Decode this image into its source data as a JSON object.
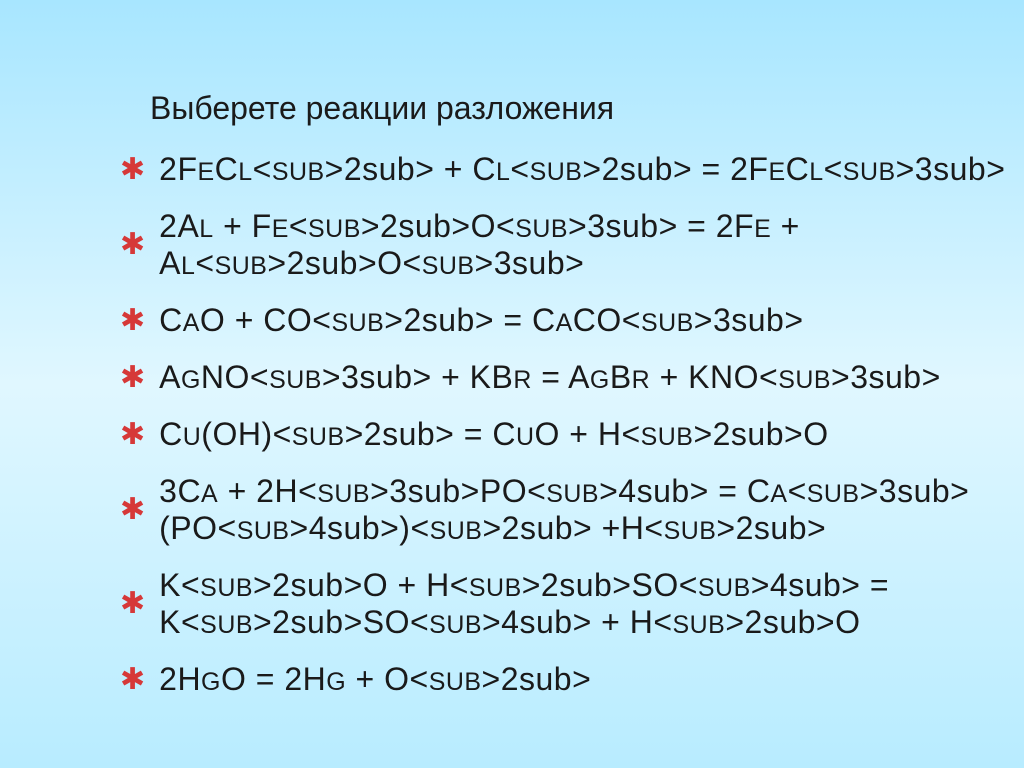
{
  "slide": {
    "title": "Выберете реакции разложения",
    "background_gradient": [
      "#a8e6ff",
      "#e0f7ff",
      "#b8ecff"
    ],
    "title_fontsize": 32,
    "title_color": "#1a1a1a",
    "bullet_color": "#d63838",
    "bullet_symbol": "✱",
    "formula_fontsize": 32,
    "formula_color": "#1a1a1a",
    "equations": [
      {
        "parts": [
          {
            "t": "2F",
            "s": false
          },
          {
            "t": "E",
            "s": false
          },
          {
            "t": "C",
            "s": false
          },
          {
            "t": "L",
            "s": false
          },
          {
            "t": "2",
            "s": true
          },
          {
            "t": " + C",
            "s": false
          },
          {
            "t": "L",
            "s": false
          },
          {
            "t": "2",
            "s": true
          },
          {
            "t": " = 2F",
            "s": false
          },
          {
            "t": "E",
            "s": false
          },
          {
            "t": "C",
            "s": false
          },
          {
            "t": "L",
            "s": false
          },
          {
            "t": "3",
            "s": true
          }
        ]
      },
      {
        "parts": [
          {
            "t": "2A",
            "s": false
          },
          {
            "t": "L",
            "s": false
          },
          {
            "t": " + F",
            "s": false
          },
          {
            "t": "E",
            "s": false
          },
          {
            "t": "2",
            "s": true
          },
          {
            "t": "O",
            "s": false
          },
          {
            "t": "3",
            "s": true
          },
          {
            "t": " = 2F",
            "s": false
          },
          {
            "t": "E",
            "s": false
          },
          {
            "t": " + A",
            "s": false
          },
          {
            "t": "L",
            "s": false
          },
          {
            "t": "2",
            "s": true
          },
          {
            "t": "O",
            "s": false
          },
          {
            "t": "3",
            "s": true
          }
        ]
      },
      {
        "parts": [
          {
            "t": "C",
            "s": false
          },
          {
            "t": "A",
            "s": false
          },
          {
            "t": "O + CO",
            "s": false
          },
          {
            "t": "2",
            "s": true
          },
          {
            "t": " = C",
            "s": false
          },
          {
            "t": "A",
            "s": false
          },
          {
            "t": "CO",
            "s": false
          },
          {
            "t": "3",
            "s": true
          }
        ]
      },
      {
        "parts": [
          {
            "t": "A",
            "s": false
          },
          {
            "t": "G",
            "s": false
          },
          {
            "t": "NO",
            "s": false
          },
          {
            "t": "3",
            "s": true
          },
          {
            "t": " + KB",
            "s": false
          },
          {
            "t": "R",
            "s": false
          },
          {
            "t": " = A",
            "s": false
          },
          {
            "t": "G",
            "s": false
          },
          {
            "t": "B",
            "s": false
          },
          {
            "t": "R",
            "s": false
          },
          {
            "t": " + KNO",
            "s": false
          },
          {
            "t": "3",
            "s": true
          }
        ]
      },
      {
        "parts": [
          {
            "t": "C",
            "s": false
          },
          {
            "t": "U",
            "s": false
          },
          {
            "t": "(OH)",
            "s": false
          },
          {
            "t": "2",
            "s": true
          },
          {
            "t": " = C",
            "s": false
          },
          {
            "t": "U",
            "s": false
          },
          {
            "t": "O + H",
            "s": false
          },
          {
            "t": "2",
            "s": true
          },
          {
            "t": "O",
            "s": false
          }
        ]
      },
      {
        "parts": [
          {
            "t": "3C",
            "s": false
          },
          {
            "t": "A",
            "s": false
          },
          {
            "t": "   + 2H",
            "s": false
          },
          {
            "t": "3",
            "s": true
          },
          {
            "t": "PO",
            "s": false
          },
          {
            "t": "4",
            "s": true
          },
          {
            "t": " = C",
            "s": false
          },
          {
            "t": "A",
            "s": false
          },
          {
            "t": "3",
            "s": true
          },
          {
            "t": "(PO",
            "s": false
          },
          {
            "t": "4",
            "s": true
          },
          {
            "t": ")",
            "s": false
          },
          {
            "t": "2",
            "s": true
          },
          {
            "t": " +H",
            "s": false
          },
          {
            "t": "2",
            "s": true
          }
        ]
      },
      {
        "parts": [
          {
            "t": "K",
            "s": false
          },
          {
            "t": "2",
            "s": true
          },
          {
            "t": "O + H",
            "s": false
          },
          {
            "t": "2",
            "s": true
          },
          {
            "t": "SO",
            "s": false
          },
          {
            "t": "4",
            "s": true
          },
          {
            "t": " = K",
            "s": false
          },
          {
            "t": "2",
            "s": true
          },
          {
            "t": "SO",
            "s": false
          },
          {
            "t": "4",
            "s": true
          },
          {
            "t": " + H",
            "s": false
          },
          {
            "t": "2",
            "s": true
          },
          {
            "t": "O",
            "s": false
          }
        ]
      },
      {
        "parts": [
          {
            "t": "2H",
            "s": false
          },
          {
            "t": "G",
            "s": false
          },
          {
            "t": "O = 2H",
            "s": false
          },
          {
            "t": "G",
            "s": false
          },
          {
            "t": " + O",
            "s": false
          },
          {
            "t": "2",
            "s": true
          }
        ]
      }
    ]
  }
}
